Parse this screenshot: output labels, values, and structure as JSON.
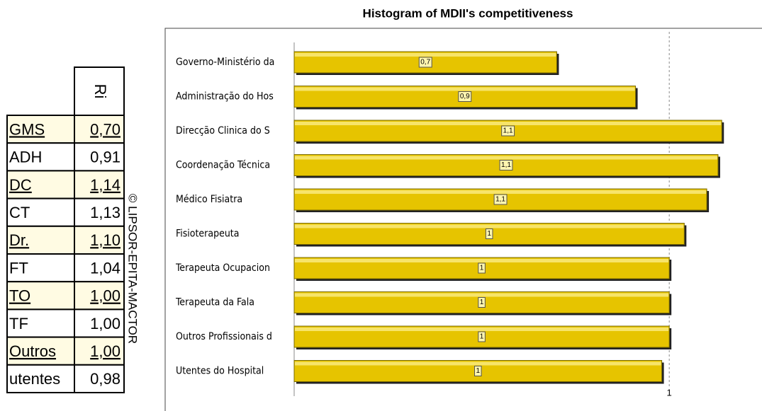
{
  "table": {
    "header": "Ri",
    "rows": [
      [
        "GMS",
        "0,70"
      ],
      [
        "ADH",
        "0,91"
      ],
      [
        "DC",
        "1,14"
      ],
      [
        "CT",
        "1,13"
      ],
      [
        "Dr.",
        "1,10"
      ],
      [
        "FT",
        "1,04"
      ],
      [
        "TO",
        "1,00"
      ],
      [
        "TF",
        "1,00"
      ],
      [
        "Outros",
        "1,00"
      ],
      [
        "utentes",
        "0,98"
      ]
    ]
  },
  "copyright": "© LIPSOR-EPITA-MACTOR",
  "chart_data": {
    "type": "hbar",
    "title": "Histogram of MDII's competitiveness",
    "categories": [
      "Governo-Ministério da",
      "Administração do Hos",
      "Direcção Clinica do S",
      "Coordenação Técnica",
      "Médico Fisiatra",
      "Fisioterapeuta",
      "Terapeuta Ocupacion",
      "Terapeuta da Fala",
      "Outros Profissionais d",
      "Utentes do Hospital"
    ],
    "values": [
      0.7,
      0.91,
      1.14,
      1.13,
      1.1,
      1.04,
      1.0,
      1.0,
      1.0,
      0.98
    ],
    "value_labels": [
      "0,7",
      "0,9",
      "1,1",
      "1,1",
      "1,1",
      "1",
      "1",
      "1",
      "1",
      "1"
    ],
    "color": "#e6c400",
    "xlim": [
      0,
      1.2
    ],
    "xticks": [
      1
    ]
  }
}
